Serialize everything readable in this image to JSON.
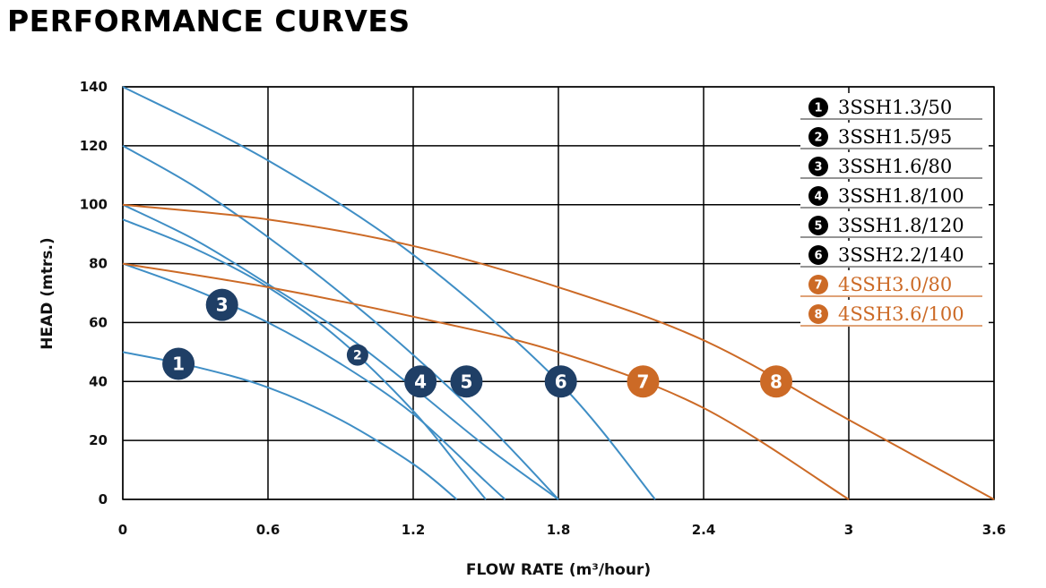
{
  "title": "PERFORMANCE CURVES",
  "colors": {
    "blue": "#3f8ec5",
    "orange": "#cc6a26",
    "marker_blue": "#1f3f66",
    "grid": "#000000"
  },
  "chart_data": {
    "type": "line",
    "xlabel": "FLOW RATE (m³/hour)",
    "ylabel": "HEAD (mtrs.)",
    "xlim": [
      0,
      3.6
    ],
    "ylim": [
      0,
      140
    ],
    "x_ticks": [
      "0",
      "0.6",
      "1.2",
      "1.8",
      "2.4",
      "3",
      "3.6"
    ],
    "y_ticks": [
      "0",
      "20",
      "40",
      "60",
      "80",
      "100",
      "120",
      "140"
    ],
    "x_tick_values": [
      0,
      0.6,
      1.2,
      1.8,
      2.4,
      3.0,
      3.6
    ],
    "y_tick_values": [
      0,
      20,
      40,
      60,
      80,
      100,
      120,
      140
    ],
    "grid": true,
    "legend_position": "top-right",
    "series": [
      {
        "num": "1",
        "name": "3SSH1.3/50",
        "color": "blue",
        "x": [
          0,
          0.3,
          0.6,
          0.9,
          1.2,
          1.38
        ],
        "y": [
          50,
          45,
          38,
          27,
          12,
          0
        ],
        "marker": {
          "x": 0.23,
          "y": 46,
          "size": "large"
        }
      },
      {
        "num": "2",
        "name": "3SSH1.5/95",
        "color": "blue",
        "x": [
          0,
          0.3,
          0.6,
          0.9,
          1.2,
          1.4,
          1.5
        ],
        "y": [
          95,
          85,
          72,
          54,
          30,
          10,
          0
        ],
        "marker": {
          "x": 0.97,
          "y": 49,
          "size": "small"
        }
      },
      {
        "num": "3",
        "name": "3SSH1.6/80",
        "color": "blue",
        "x": [
          0,
          0.3,
          0.6,
          0.9,
          1.2,
          1.5,
          1.58
        ],
        "y": [
          80,
          71,
          60,
          46,
          29,
          6,
          0
        ],
        "marker": {
          "x": 0.41,
          "y": 66,
          "size": "large"
        }
      },
      {
        "num": "4",
        "name": "3SSH1.8/100",
        "color": "blue",
        "x": [
          0,
          0.3,
          0.6,
          0.9,
          1.2,
          1.5,
          1.8
        ],
        "y": [
          100,
          88,
          73,
          57,
          38,
          18,
          0
        ],
        "marker": {
          "x": 1.23,
          "y": 40,
          "size": "large"
        }
      },
      {
        "num": "5",
        "name": "3SSH1.8/120",
        "color": "blue",
        "x": [
          0,
          0.3,
          0.6,
          0.9,
          1.2,
          1.5,
          1.8
        ],
        "y": [
          120,
          106,
          89,
          70,
          49,
          26,
          0
        ],
        "marker": {
          "x": 1.42,
          "y": 40,
          "size": "large"
        }
      },
      {
        "num": "6",
        "name": "3SSH2.2/140",
        "color": "blue",
        "x": [
          0,
          0.6,
          1.2,
          1.8,
          2.2
        ],
        "y": [
          140,
          115,
          83,
          40,
          0
        ],
        "marker": {
          "x": 1.81,
          "y": 40,
          "size": "large"
        }
      },
      {
        "num": "7",
        "name": "4SSH3.0/80",
        "color": "orange",
        "x": [
          0,
          0.6,
          1.2,
          1.8,
          2.4,
          3.0
        ],
        "y": [
          80,
          72,
          62,
          50,
          31,
          0
        ],
        "marker": {
          "x": 2.15,
          "y": 40,
          "size": "large"
        }
      },
      {
        "num": "8",
        "name": "4SSH3.6/100",
        "color": "orange",
        "x": [
          0,
          0.6,
          1.2,
          1.8,
          2.4,
          3.0,
          3.6
        ],
        "y": [
          100,
          95,
          86,
          72,
          54,
          27,
          0
        ],
        "marker": {
          "x": 2.7,
          "y": 40,
          "size": "large"
        }
      }
    ]
  }
}
